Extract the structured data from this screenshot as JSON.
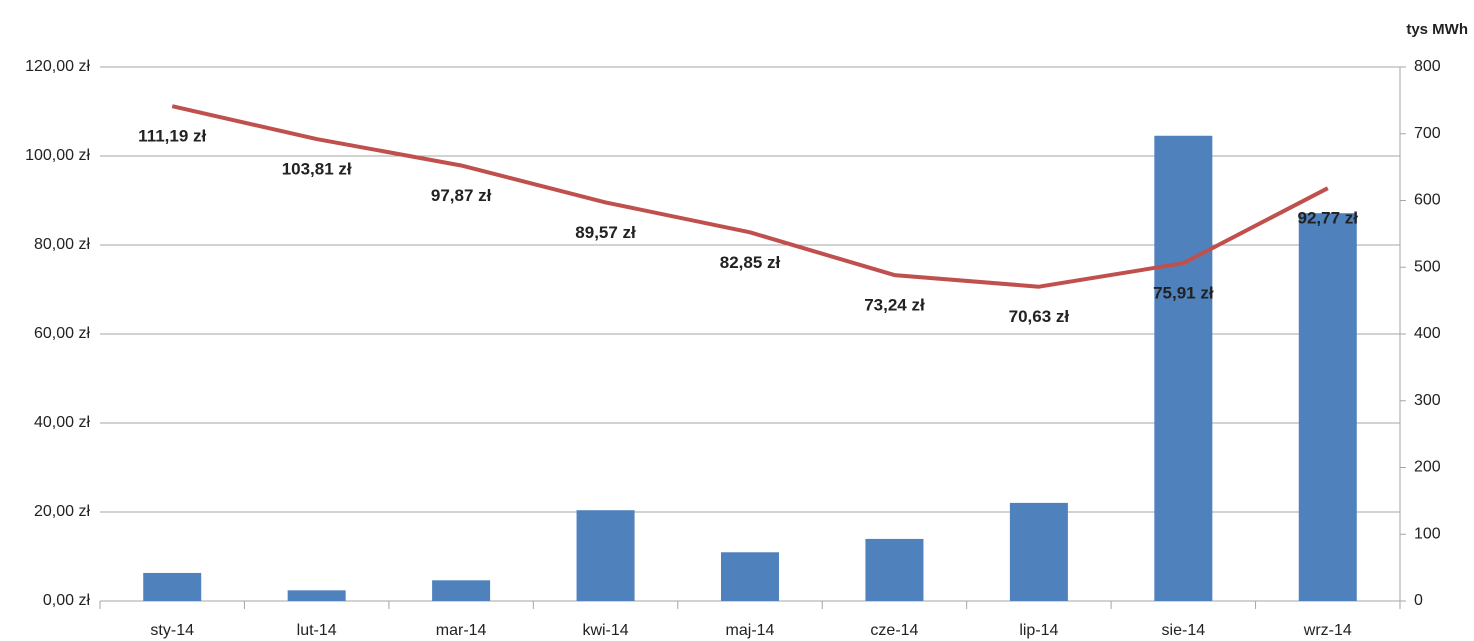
{
  "chart_data": {
    "type": "bar-line",
    "y2_title": "tys MWh",
    "categories": [
      "sty-14",
      "lut-14",
      "mar-14",
      "kwi-14",
      "maj-14",
      "cze-14",
      "lip-14",
      "sie-14",
      "wrz-14"
    ],
    "series": [
      {
        "type": "bar",
        "axis": "y2",
        "color": "#4f81bd",
        "values": [
          42,
          16,
          31,
          136,
          73,
          93,
          147,
          697,
          581
        ]
      },
      {
        "type": "line",
        "axis": "y",
        "color": "#c0504d",
        "values": [
          111.19,
          103.81,
          97.87,
          89.57,
          82.85,
          73.24,
          70.63,
          75.91,
          92.77
        ],
        "value_labels": [
          "111,19 zł",
          "103,81 zł",
          "97,87 zł",
          "89,57 zł",
          "82,85 zł",
          "73,24 zł",
          "70,63 zł",
          "75,91 zł",
          "92,77 zł"
        ]
      }
    ],
    "ylim": [
      0,
      120
    ],
    "yticks": [
      {
        "value": 0,
        "label": "0,00 zł"
      },
      {
        "value": 20,
        "label": "20,00 zł"
      },
      {
        "value": 40,
        "label": "40,00 zł"
      },
      {
        "value": 60,
        "label": "60,00 zł"
      },
      {
        "value": 80,
        "label": "80,00 zł"
      },
      {
        "value": 100,
        "label": "100,00 zł"
      },
      {
        "value": 120,
        "label": "120,00 zł"
      }
    ],
    "y2lim": [
      0,
      800
    ],
    "y2ticks": [
      0,
      100,
      200,
      300,
      400,
      500,
      600,
      700,
      800
    ],
    "grid": true
  }
}
